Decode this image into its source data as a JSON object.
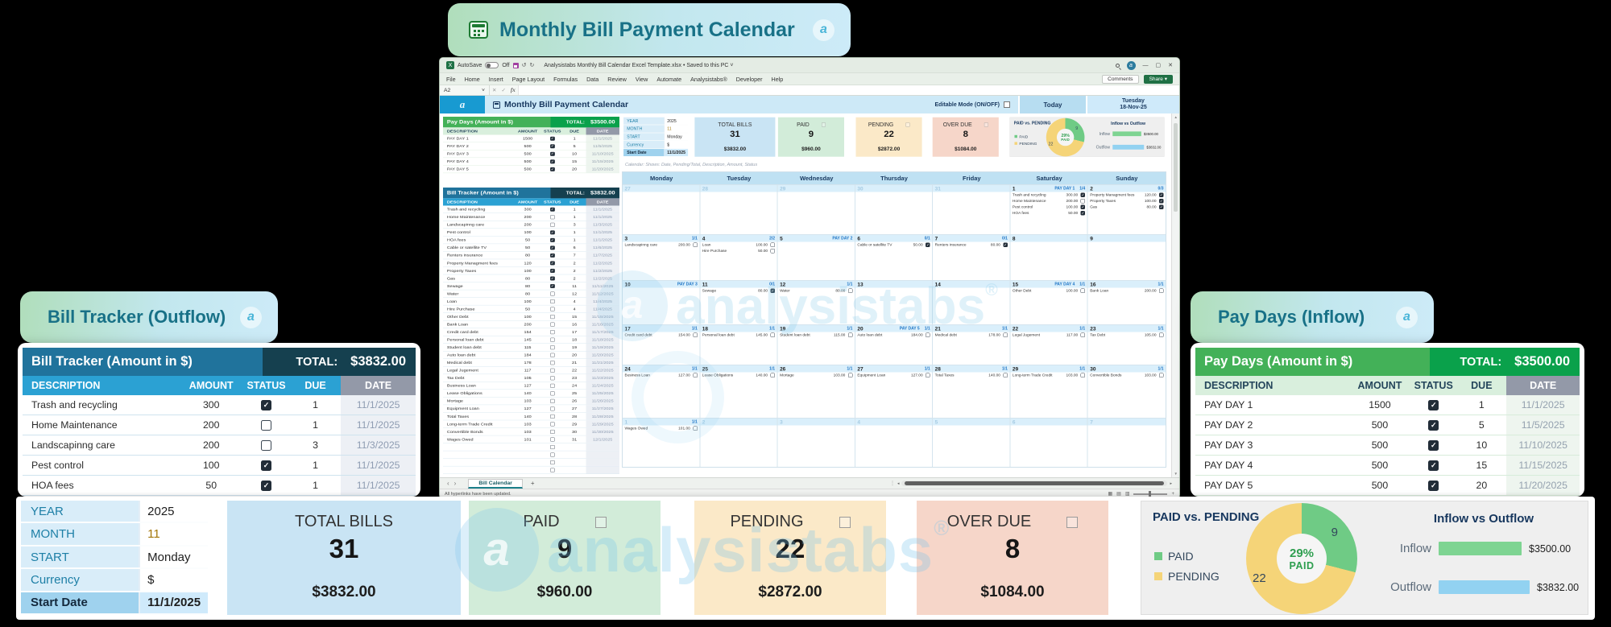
{
  "hero": {
    "title": "Monthly Bill Payment Calendar"
  },
  "brand": {
    "watermark": "analysistabs",
    "reg": "®"
  },
  "panels": {
    "bill_title": "Bill Tracker (Outflow)",
    "pay_title": "Pay Days (Inflow)"
  },
  "excel": {
    "titlebar": {
      "autosave": "AutoSave",
      "autosave_state": "Off",
      "filename": "Analysistabs Monthly Bill Calendar Excel Template.xlsx",
      "saved": "Saved to this PC"
    },
    "menu": [
      "File",
      "Home",
      "Insert",
      "Page Layout",
      "Formulas",
      "Data",
      "Review",
      "View",
      "Automate",
      "Analysistabs®",
      "Developer",
      "Help"
    ],
    "comments": "Comments",
    "share": "Share",
    "name_box": "A2",
    "fx": "fx",
    "header": {
      "title": "Monthly Bill Payment Calendar",
      "editable": "Editable Mode (ON/OFF)",
      "today": "Today",
      "weekday": "Tuesday",
      "date": "18-Nov-25"
    },
    "note": "Calendar: Shows: Date, Pending/Total, Description, Amount, Status",
    "sheet_tab": "Bill Calendar",
    "status": "All hyperlinks have been updated."
  },
  "columns": [
    "DESCRIPTION",
    "AMOUNT",
    "STATUS",
    "DUE",
    "DATE"
  ],
  "bill_tracker": {
    "table_title": "Bill Tracker (Amount in $)",
    "total_label": "TOTAL:",
    "total_value": "$3832.00",
    "rows": [
      [
        "Trash and recycling",
        "300",
        true,
        "1",
        "11/1/2025"
      ],
      [
        "Home Maintenance",
        "200",
        false,
        "1",
        "11/1/2025"
      ],
      [
        "Landscapinng care",
        "200",
        false,
        "3",
        "11/3/2025"
      ],
      [
        "Pest control",
        "100",
        true,
        "1",
        "11/1/2025"
      ],
      [
        "HOA fees",
        "50",
        true,
        "1",
        "11/1/2025"
      ],
      [
        "Cable or satellite TV",
        "50",
        true,
        "6",
        "11/6/2025"
      ],
      [
        "Renters insurance",
        "80",
        true,
        "7",
        "11/7/2025"
      ],
      [
        "Property Managment fees",
        "120",
        true,
        "2",
        "11/2/2025"
      ],
      [
        "Property Taxes",
        "100",
        true,
        "2",
        "11/2/2025"
      ],
      [
        "Gas",
        "80",
        true,
        "2",
        "11/2/2025"
      ],
      [
        "Sewage",
        "80",
        true,
        "11",
        "11/11/2025"
      ],
      [
        "Water",
        "80",
        false,
        "12",
        "11/12/2025"
      ],
      [
        "Loan",
        "100",
        false,
        "4",
        "11/4/2025"
      ],
      [
        "Hire Purchase",
        "50",
        false,
        "4",
        "11/4/2025"
      ],
      [
        "Other Debt",
        "100",
        false,
        "15",
        "11/15/2025"
      ],
      [
        "Bank Loan",
        "200",
        false,
        "16",
        "11/16/2025"
      ],
      [
        "Credit card debt",
        "154",
        false,
        "17",
        "11/17/2025"
      ],
      [
        "Personal loan debt",
        "145",
        false,
        "18",
        "11/18/2025"
      ],
      [
        "Student loan debt",
        "115",
        false,
        "19",
        "11/19/2025"
      ],
      [
        "Auto loan debt",
        "184",
        false,
        "20",
        "11/20/2025"
      ],
      [
        "Medical debt",
        "178",
        false,
        "21",
        "11/21/2025"
      ],
      [
        "Legal Jugement",
        "117",
        false,
        "22",
        "11/22/2025"
      ],
      [
        "Tax Debt",
        "105",
        false,
        "23",
        "11/23/2025"
      ],
      [
        "Business Loan",
        "127",
        false,
        "24",
        "11/24/2025"
      ],
      [
        "Lease Obligations",
        "140",
        false,
        "25",
        "11/25/2025"
      ],
      [
        "Mortage",
        "103",
        false,
        "26",
        "11/26/2025"
      ],
      [
        "Equipment Loan",
        "127",
        false,
        "27",
        "11/27/2025"
      ],
      [
        "Total Taxes",
        "140",
        false,
        "28",
        "11/28/2025"
      ],
      [
        "Long-term Trade Credit",
        "103",
        false,
        "29",
        "11/29/2025"
      ],
      [
        "Convertible Bonds",
        "103",
        false,
        "30",
        "11/30/2025"
      ],
      [
        "Wages Owed",
        "101",
        false,
        "31",
        "12/1/2025"
      ]
    ]
  },
  "pay_days": {
    "table_title": "Pay Days (Amount in $)",
    "total_label": "TOTAL:",
    "total_value": "$3500.00",
    "rows": [
      [
        "PAY DAY 1",
        "1500",
        true,
        "1",
        "11/1/2025"
      ],
      [
        "PAY DAY 2",
        "500",
        true,
        "5",
        "11/5/2025"
      ],
      [
        "PAY DAY 3",
        "500",
        true,
        "10",
        "11/10/2025"
      ],
      [
        "PAY DAY 4",
        "500",
        true,
        "15",
        "11/15/2025"
      ],
      [
        "PAY DAY 5",
        "500",
        true,
        "20",
        "11/20/2025"
      ]
    ]
  },
  "settings": {
    "rows": [
      [
        "YEAR",
        "2025"
      ],
      [
        "MONTH",
        "11"
      ],
      [
        "START",
        "Monday"
      ],
      [
        "Currency",
        "$"
      ],
      [
        "Start Date",
        "11/1/2025"
      ]
    ]
  },
  "summary_cards": [
    {
      "key": "total-bills",
      "label": "TOTAL BILLS",
      "count": "31",
      "amount": "$3832.00",
      "checkbox": false,
      "bg": "#c9e4f4"
    },
    {
      "key": "paid",
      "label": "PAID",
      "count": "9",
      "amount": "$960.00",
      "checkbox": true,
      "bg": "#d2ecd9"
    },
    {
      "key": "pending",
      "label": "PENDING",
      "count": "22",
      "amount": "$2872.00",
      "checkbox": true,
      "bg": "#fbe9c8"
    },
    {
      "key": "over-due",
      "label": "OVER DUE",
      "count": "8",
      "amount": "$1084.00",
      "checkbox": true,
      "bg": "#f6d6c9"
    }
  ],
  "chart_data": [
    {
      "type": "pie",
      "title": "PAID vs. PENDING",
      "labels": [
        "PAID",
        "PENDING"
      ],
      "values": [
        9,
        22
      ],
      "colors": [
        "#6fcb85",
        "#f5d478"
      ],
      "center_percent": "29%",
      "center_label": "PAID",
      "legend_position": "left"
    },
    {
      "type": "bar",
      "title": "Inflow vs Outflow",
      "categories": [
        "Inflow",
        "Outflow"
      ],
      "values": [
        3500,
        3832
      ],
      "value_labels": [
        "$3500.00",
        "$3832.00"
      ],
      "colors": [
        "#7ed492",
        "#92d2f1"
      ],
      "xlim": [
        0,
        4000
      ]
    }
  ],
  "calendar": {
    "day_headers": [
      "Monday",
      "Tuesday",
      "Wednesday",
      "Thursday",
      "Friday",
      "Saturday",
      "Sunday"
    ],
    "weeks": [
      [
        {
          "day": "27",
          "muted": true
        },
        {
          "day": "28",
          "muted": true
        },
        {
          "day": "29",
          "muted": true
        },
        {
          "day": "30",
          "muted": true
        },
        {
          "day": "31",
          "muted": true
        },
        {
          "day": "1",
          "badge": "PAY DAY 1",
          "ratio": "1/4",
          "entries": [
            [
              "Trash and recycling",
              "300.00",
              true
            ],
            [
              "Home Maintenance",
              "200.00",
              false
            ],
            [
              "Pest control",
              "100.00",
              true
            ],
            [
              "HOA fees",
              "50.00",
              true
            ]
          ]
        },
        {
          "day": "2",
          "ratio": "0/3",
          "entries": [
            [
              "Property Managment fees",
              "120.00",
              true
            ],
            [
              "Property Taxes",
              "100.00",
              true
            ],
            [
              "Gas",
              "80.00",
              true
            ]
          ]
        }
      ],
      [
        {
          "day": "3",
          "ratio": "1/1",
          "entries": [
            [
              "Landscapinng care",
              "200.00",
              false
            ]
          ]
        },
        {
          "day": "4",
          "ratio": "2/2",
          "entries": [
            [
              "Loan",
              "100.00",
              false
            ],
            [
              "Hire Purchase",
              "50.00",
              false
            ]
          ]
        },
        {
          "day": "5",
          "badge": "PAY DAY 2"
        },
        {
          "day": "6",
          "ratio": "0/1",
          "entries": [
            [
              "Cable or satellite TV",
              "50.00",
              true
            ]
          ]
        },
        {
          "day": "7",
          "ratio": "0/1",
          "entries": [
            [
              "Renters insurance",
              "80.00",
              true
            ]
          ]
        },
        {
          "day": "8"
        },
        {
          "day": "9"
        }
      ],
      [
        {
          "day": "10",
          "badge": "PAY DAY 3"
        },
        {
          "day": "11",
          "ratio": "0/1",
          "entries": [
            [
              "Sewage",
              "80.00",
              true
            ]
          ]
        },
        {
          "day": "12",
          "ratio": "1/1",
          "entries": [
            [
              "Water",
              "80.00",
              false
            ]
          ]
        },
        {
          "day": "13"
        },
        {
          "day": "14"
        },
        {
          "day": "15",
          "badge": "PAY DAY 4",
          "ratio": "1/1",
          "entries": [
            [
              "Other Debt",
              "100.00",
              false
            ]
          ]
        },
        {
          "day": "16",
          "ratio": "1/1",
          "entries": [
            [
              "Bank Loan",
              "200.00",
              false
            ]
          ]
        }
      ],
      [
        {
          "day": "17",
          "ratio": "1/1",
          "entries": [
            [
              "Credit card debt",
              "154.00",
              false
            ]
          ]
        },
        {
          "day": "18",
          "ratio": "1/1",
          "entries": [
            [
              "Personal loan debt",
              "145.00",
              false
            ]
          ]
        },
        {
          "day": "19",
          "ratio": "1/1",
          "entries": [
            [
              "Student loan debt",
              "115.00",
              false
            ]
          ]
        },
        {
          "day": "20",
          "badge": "PAY DAY 5",
          "ratio": "1/1",
          "entries": [
            [
              "Auto loan debt",
              "184.00",
              false
            ]
          ]
        },
        {
          "day": "21",
          "ratio": "1/1",
          "entries": [
            [
              "Medical debt",
              "178.00",
              false
            ]
          ]
        },
        {
          "day": "22",
          "ratio": "1/1",
          "entries": [
            [
              "Legal Jugement",
              "117.00",
              false
            ]
          ]
        },
        {
          "day": "23",
          "ratio": "1/1",
          "entries": [
            [
              "Tax Debt",
              "105.00",
              false
            ]
          ]
        }
      ],
      [
        {
          "day": "24",
          "ratio": "1/1",
          "entries": [
            [
              "Business Loan",
              "127.00",
              false
            ]
          ]
        },
        {
          "day": "25",
          "ratio": "1/1",
          "entries": [
            [
              "Lease Obligations",
              "140.00",
              false
            ]
          ]
        },
        {
          "day": "26",
          "ratio": "1/1",
          "entries": [
            [
              "Mortage",
              "103.00",
              false
            ]
          ]
        },
        {
          "day": "27",
          "ratio": "1/1",
          "entries": [
            [
              "Equipment Loan",
              "127.00",
              false
            ]
          ]
        },
        {
          "day": "28",
          "ratio": "1/1",
          "entries": [
            [
              "Total Taxes",
              "140.00",
              false
            ]
          ]
        },
        {
          "day": "29",
          "ratio": "1/1",
          "entries": [
            [
              "Long-term Trade Credit",
              "103.00",
              false
            ]
          ]
        },
        {
          "day": "30",
          "ratio": "1/1",
          "entries": [
            [
              "Convertible Bonds",
              "103.00",
              false
            ]
          ]
        }
      ],
      [
        {
          "day": "1",
          "muted": true,
          "ratio": "1/1",
          "entries": [
            [
              "Wages Owed",
              "101.00",
              false
            ]
          ]
        },
        {
          "day": "2",
          "muted": true
        },
        {
          "day": "3",
          "muted": true
        },
        {
          "day": "4",
          "muted": true
        },
        {
          "day": "5",
          "muted": true
        },
        {
          "day": "6",
          "muted": true
        },
        {
          "day": "7",
          "muted": true
        }
      ]
    ]
  }
}
